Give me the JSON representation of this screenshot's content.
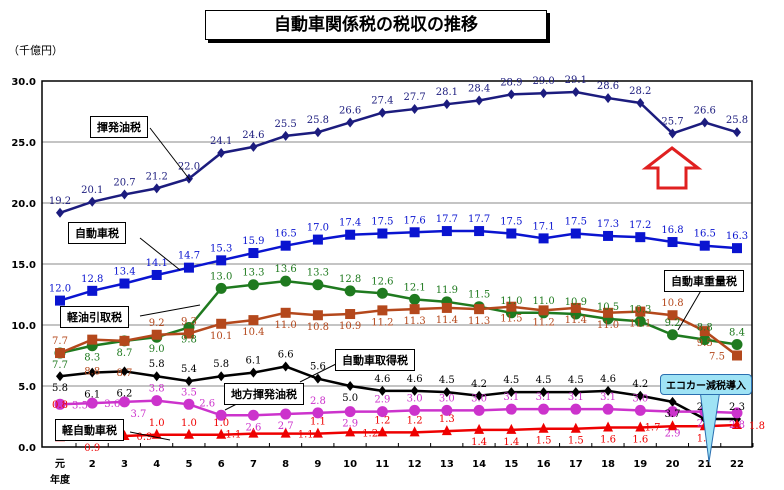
{
  "chart_data": {
    "type": "line",
    "title": "自動車関係税の税収の推移",
    "ylabel": "（千億円）",
    "xlabel": "年度",
    "ylim": [
      0,
      30
    ],
    "yticks": [
      "0.0",
      "5.0",
      "10.0",
      "15.0",
      "20.0",
      "25.0",
      "30.0"
    ],
    "categories": [
      "元",
      "2",
      "3",
      "4",
      "5",
      "6",
      "7",
      "8",
      "9",
      "10",
      "11",
      "12",
      "13",
      "14",
      "15",
      "16",
      "17",
      "18",
      "19",
      "20",
      "21",
      "22"
    ],
    "grid": true,
    "series": [
      {
        "name": "揮発油税",
        "color": "#1c1c7e",
        "marker": "diamond",
        "values": [
          19.2,
          20.1,
          20.7,
          21.2,
          22.0,
          24.1,
          24.6,
          25.5,
          25.8,
          26.6,
          27.4,
          27.7,
          28.1,
          28.4,
          28.9,
          29.0,
          29.1,
          28.6,
          28.2,
          25.7,
          26.6,
          25.8
        ]
      },
      {
        "name": "自動車税",
        "color": "#0a14d0",
        "marker": "square",
        "values": [
          12.0,
          12.8,
          13.4,
          14.1,
          14.7,
          15.3,
          15.9,
          16.5,
          17.0,
          17.4,
          17.5,
          17.6,
          17.7,
          17.7,
          17.5,
          17.1,
          17.5,
          17.3,
          17.2,
          16.8,
          16.5,
          16.3
        ]
      },
      {
        "name": "軽油引取税",
        "color": "#1f7a1f",
        "marker": "circle",
        "values": [
          7.7,
          8.3,
          8.7,
          9.0,
          9.8,
          13.0,
          13.3,
          13.6,
          13.3,
          12.8,
          12.6,
          12.1,
          11.9,
          11.5,
          11.0,
          11.0,
          10.9,
          10.5,
          10.3,
          9.2,
          8.8,
          8.4
        ]
      },
      {
        "name": "自動車重量税",
        "color": "#b4481c",
        "marker": "square",
        "values": [
          7.7,
          8.8,
          8.7,
          9.2,
          9.3,
          10.1,
          10.4,
          11.0,
          10.8,
          10.9,
          11.2,
          11.3,
          11.4,
          11.3,
          11.5,
          11.2,
          11.4,
          11.0,
          11.1,
          10.8,
          9.5,
          7.5
        ]
      },
      {
        "name": "自動車取得税",
        "color": "#000000",
        "marker": "diamond",
        "values": [
          5.8,
          6.1,
          6.2,
          5.8,
          5.4,
          5.8,
          6.1,
          6.6,
          5.6,
          5.0,
          4.6,
          4.6,
          4.5,
          4.2,
          4.5,
          4.5,
          4.5,
          4.6,
          4.2,
          3.7,
          2.3,
          2.3
        ]
      },
      {
        "name": "地方揮発油税",
        "color": "#cc33cc",
        "marker": "circle",
        "values": [
          3.5,
          3.6,
          3.7,
          3.8,
          3.5,
          2.6,
          2.6,
          2.7,
          2.8,
          2.9,
          2.9,
          3.0,
          3.0,
          3.0,
          3.1,
          3.1,
          3.1,
          3.1,
          3.0,
          2.9,
          2.9,
          2.8
        ]
      },
      {
        "name": "軽自動車税",
        "color": "#ee0000",
        "marker": "triangle",
        "values": [
          0.8,
          0.9,
          0.9,
          1.0,
          1.0,
          1.0,
          1.1,
          1.1,
          1.1,
          1.2,
          1.2,
          1.2,
          1.3,
          1.4,
          1.4,
          1.5,
          1.5,
          1.6,
          1.6,
          1.7,
          1.7,
          1.8
        ]
      }
    ],
    "annotations": [
      "エコカー減税導入"
    ]
  }
}
